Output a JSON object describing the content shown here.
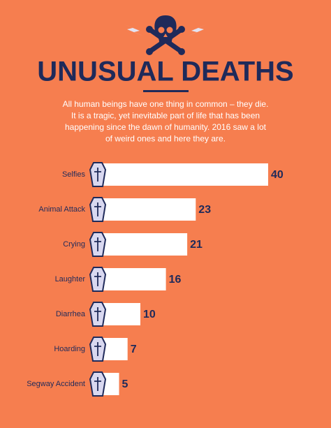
{
  "chart_data": {
    "type": "bar",
    "orientation": "horizontal",
    "title": "UNUSUAL DEATHS",
    "description": [
      "All human beings have one thing in common – they die.",
      "It is a tragic, yet inevitable part of life that has been",
      "happening since the dawn of humanity. 2016 saw a lot",
      "of weird ones and here they are."
    ],
    "categories": [
      "Selfies",
      "Animal Attack",
      "Crying",
      "Laughter",
      "Diarrhea",
      "Hoarding",
      "Segway Accident"
    ],
    "values": [
      40,
      23,
      21,
      16,
      10,
      7,
      5
    ],
    "color": "#ffffff"
  }
}
